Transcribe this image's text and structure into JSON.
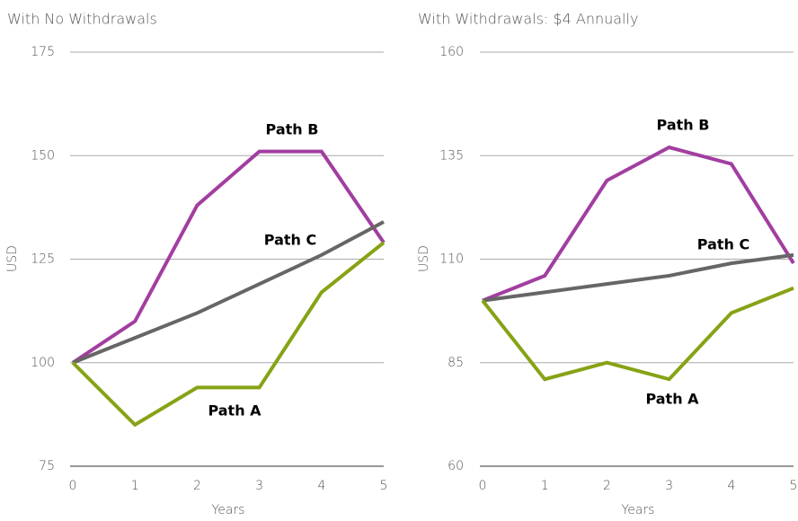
{
  "chart_data": [
    {
      "type": "line",
      "title": "With No Withdrawals",
      "x_label": "Years",
      "y_label": "USD",
      "x": [
        0,
        1,
        2,
        3,
        4,
        5
      ],
      "xlim": [
        0,
        5
      ],
      "xticks": [
        0,
        1,
        2,
        3,
        4,
        5
      ],
      "ylim": [
        75,
        175
      ],
      "yticks": [
        75,
        100,
        125,
        150,
        175
      ],
      "grid": true,
      "series": [
        {
          "name": "Path B",
          "color": "#a23ea0",
          "values": [
            100,
            110,
            138,
            151,
            151,
            129
          ]
        },
        {
          "name": "Path C",
          "color": "#666666",
          "values": [
            100,
            106,
            112,
            119,
            126,
            134
          ]
        },
        {
          "name": "Path A",
          "color": "#86a315",
          "values": [
            100,
            85,
            94,
            94,
            117,
            129
          ]
        }
      ]
    },
    {
      "type": "line",
      "title": "With Withdrawals: $4 Annually",
      "x_label": "Years",
      "y_label": "USD",
      "x": [
        0,
        1,
        2,
        3,
        4,
        5
      ],
      "xlim": [
        0,
        5
      ],
      "xticks": [
        0,
        1,
        2,
        3,
        4,
        5
      ],
      "ylim": [
        60,
        160
      ],
      "yticks": [
        60,
        85,
        110,
        135,
        160
      ],
      "grid": true,
      "series": [
        {
          "name": "Path B",
          "color": "#a23ea0",
          "values": [
            100,
            106,
            129,
            137,
            133,
            109
          ]
        },
        {
          "name": "Path C",
          "color": "#666666",
          "values": [
            100,
            102,
            104,
            106,
            109,
            111
          ]
        },
        {
          "name": "Path A",
          "color": "#86a315",
          "values": [
            100,
            81,
            85,
            81,
            97,
            103
          ]
        }
      ]
    }
  ]
}
